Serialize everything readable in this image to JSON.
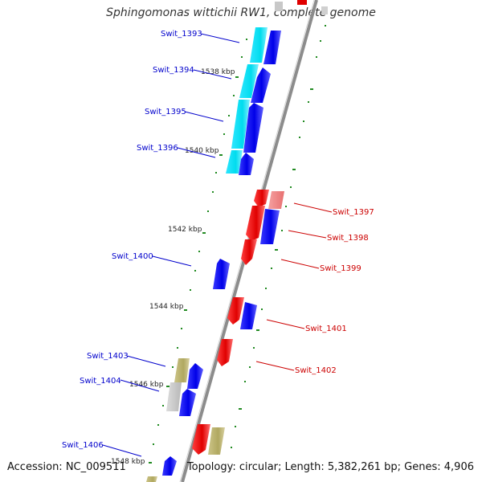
{
  "title": "Sphingomonas wittichii RW1, complete genome",
  "footer": {
    "accession": "Accession: NC_009511",
    "summary": "Topology: circular; Length: 5,382,261 bp; Genes: 4,906"
  },
  "colors": {
    "forward_gene": "#0000ee",
    "reverse_gene": "#ee0000",
    "reverse_light": "#f08080",
    "cyan_band": "#00e5ee",
    "olive_gene": "#b8b070",
    "gray_band": "#c0c0c0",
    "left_label": "#0000cc",
    "right_label": "#cc0000",
    "backbone": "#8c8c8c",
    "tick": "#228b22"
  },
  "kbp_labels": [
    "1538 kbp",
    "1540 kbp",
    "1542 kbp",
    "1544 kbp",
    "1546 kbp",
    "1548 kbp"
  ],
  "left_labels": [
    "Swit_1393",
    "Swit_1394",
    "Swit_1395",
    "Swit_1396",
    "Swit_1400",
    "Swit_1403",
    "Swit_1404",
    "Swit_1406"
  ],
  "right_labels": [
    "Swit_1397",
    "Swit_1398",
    "Swit_1399",
    "Swit_1401",
    "Swit_1402"
  ]
}
